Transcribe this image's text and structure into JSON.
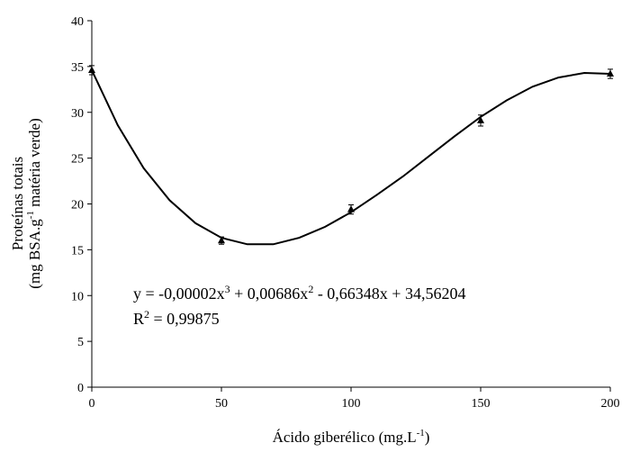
{
  "chart_data": {
    "type": "scatter",
    "xlabel": [
      "Ácido giberélico (mg.L",
      "-1",
      ")"
    ],
    "ylabel": [
      [
        "Proteínas totais"
      ],
      [
        "(mg BSA.g",
        "-1",
        " matéria verde)"
      ]
    ],
    "equation": [
      "y = -0,00002x",
      "3",
      " + 0,00686x",
      "2",
      " - 0,66348x + 34,56204"
    ],
    "r2": [
      "R",
      "2",
      " = 0,99875"
    ],
    "x": [
      0,
      50,
      100,
      150,
      200
    ],
    "values": [
      34.6,
      16.0,
      19.4,
      29.1,
      34.2
    ],
    "errors": [
      0.5,
      0.4,
      0.5,
      0.6,
      0.5
    ],
    "color": "#000000",
    "fit": {
      "x": [
        0,
        10,
        20,
        30,
        40,
        50,
        60,
        70,
        80,
        90,
        100,
        110,
        120,
        130,
        140,
        150,
        160,
        170,
        180,
        190,
        200
      ],
      "values": [
        34.6,
        28.6,
        23.9,
        20.4,
        17.9,
        16.3,
        15.6,
        15.6,
        16.3,
        17.5,
        19.1,
        21.0,
        23.0,
        25.2,
        27.4,
        29.5,
        31.3,
        32.8,
        33.8,
        34.3,
        34.2
      ]
    },
    "xlim": [
      0,
      200
    ],
    "xticks": [
      0,
      50,
      100,
      150,
      200
    ],
    "ylim": [
      0,
      40
    ],
    "yticks": [
      0,
      5,
      10,
      15,
      20,
      25,
      30,
      35,
      40
    ],
    "grid": false
  }
}
